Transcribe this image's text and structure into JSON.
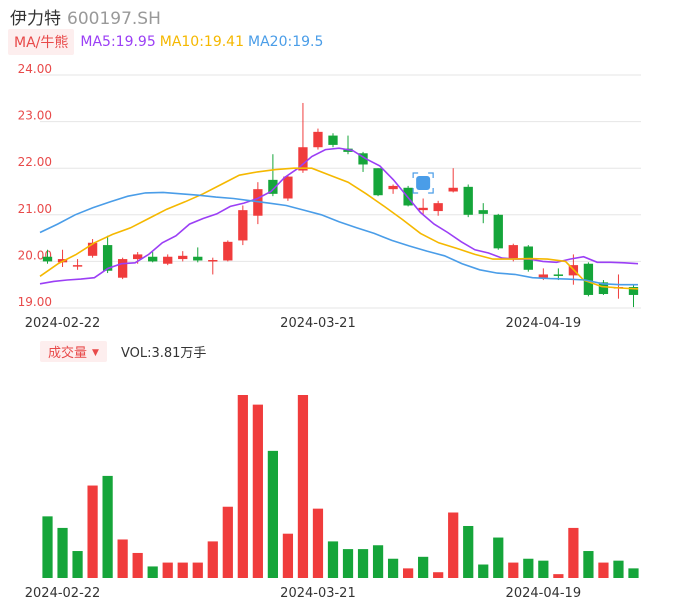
{
  "header": {
    "name": "伊力特",
    "code": "600197.SH"
  },
  "ma_legend": {
    "button": "MA/牛熊",
    "items": [
      {
        "label": "MA5:19.95",
        "color": "#9b3ff5"
      },
      {
        "label": "MA10:19.41",
        "color": "#f5b800"
      },
      {
        "label": "MA20:19.5",
        "color": "#4a9de8"
      }
    ]
  },
  "vol_legend": {
    "button": "成交量",
    "text": "VOL:3.81万手"
  },
  "colors": {
    "up": "#f03c3c",
    "down": "#15a53a",
    "grid": "#e6e6e6",
    "axis_text": "#e84a4a",
    "date_text": "#333333"
  },
  "chart_data": [
    {
      "type": "candlestick",
      "y_ticks": [
        "24.00",
        "23.00",
        "22.00",
        "21.00",
        "20.00",
        "19.00"
      ],
      "ylim": [
        19.0,
        24.0
      ],
      "x_labels": [
        {
          "index": 1,
          "label": "2024-02-22"
        },
        {
          "index": 18,
          "label": "2024-03-21"
        },
        {
          "index": 33,
          "label": "2024-04-19"
        }
      ],
      "candles": [
        {
          "o": 20.1,
          "c": 20.0,
          "h": 20.25,
          "l": 19.95
        },
        {
          "o": 19.98,
          "c": 20.05,
          "h": 20.25,
          "l": 19.88
        },
        {
          "o": 19.92,
          "c": 19.92,
          "h": 20.05,
          "l": 19.82
        },
        {
          "o": 20.12,
          "c": 20.4,
          "h": 20.48,
          "l": 20.08
        },
        {
          "o": 20.35,
          "c": 19.8,
          "h": 20.55,
          "l": 19.75
        },
        {
          "o": 19.65,
          "c": 20.05,
          "h": 20.08,
          "l": 19.62
        },
        {
          "o": 20.05,
          "c": 20.15,
          "h": 20.2,
          "l": 19.95
        },
        {
          "o": 20.1,
          "c": 20.0,
          "h": 20.2,
          "l": 19.98
        },
        {
          "o": 19.95,
          "c": 20.1,
          "h": 20.15,
          "l": 19.92
        },
        {
          "o": 20.05,
          "c": 20.12,
          "h": 20.22,
          "l": 20.0
        },
        {
          "o": 20.1,
          "c": 20.02,
          "h": 20.3,
          "l": 19.98
        },
        {
          "o": 20.0,
          "c": 20.03,
          "h": 20.08,
          "l": 19.72
        },
        {
          "o": 20.02,
          "c": 20.42,
          "h": 20.45,
          "l": 20.0
        },
        {
          "o": 20.45,
          "c": 21.1,
          "h": 21.2,
          "l": 20.35
        },
        {
          "o": 20.98,
          "c": 21.55,
          "h": 21.7,
          "l": 20.8
        },
        {
          "o": 21.75,
          "c": 21.45,
          "h": 22.3,
          "l": 21.4
        },
        {
          "o": 21.35,
          "c": 21.82,
          "h": 21.85,
          "l": 21.3
        },
        {
          "o": 21.95,
          "c": 22.45,
          "h": 23.4,
          "l": 21.9
        },
        {
          "o": 22.45,
          "c": 22.78,
          "h": 22.85,
          "l": 22.4
        },
        {
          "o": 22.7,
          "c": 22.5,
          "h": 22.75,
          "l": 22.45
        },
        {
          "o": 22.42,
          "c": 22.35,
          "h": 22.7,
          "l": 22.3
        },
        {
          "o": 22.32,
          "c": 22.08,
          "h": 22.35,
          "l": 21.92
        },
        {
          "o": 22.0,
          "c": 21.42,
          "h": 22.0,
          "l": 21.4
        },
        {
          "o": 21.55,
          "c": 21.62,
          "h": 21.65,
          "l": 21.45
        },
        {
          "o": 21.58,
          "c": 21.2,
          "h": 21.62,
          "l": 21.18
        },
        {
          "o": 21.1,
          "c": 21.15,
          "h": 21.35,
          "l": 21.0
        },
        {
          "o": 21.08,
          "c": 21.25,
          "h": 21.3,
          "l": 20.98
        },
        {
          "o": 21.5,
          "c": 21.58,
          "h": 22.0,
          "l": 21.48
        },
        {
          "o": 21.6,
          "c": 21.0,
          "h": 21.65,
          "l": 20.95
        },
        {
          "o": 21.1,
          "c": 21.02,
          "h": 21.25,
          "l": 20.82
        },
        {
          "o": 21.0,
          "c": 20.28,
          "h": 21.02,
          "l": 20.25
        },
        {
          "o": 20.05,
          "c": 20.35,
          "h": 20.38,
          "l": 20.0
        },
        {
          "o": 20.32,
          "c": 19.82,
          "h": 20.35,
          "l": 19.78
        },
        {
          "o": 19.65,
          "c": 19.72,
          "h": 19.85,
          "l": 19.6
        },
        {
          "o": 19.72,
          "c": 19.7,
          "h": 19.85,
          "l": 19.6
        },
        {
          "o": 19.7,
          "c": 19.92,
          "h": 20.15,
          "l": 19.5
        },
        {
          "o": 19.95,
          "c": 19.28,
          "h": 19.98,
          "l": 19.25
        },
        {
          "o": 19.55,
          "c": 19.3,
          "h": 19.6,
          "l": 19.28
        },
        {
          "o": 19.45,
          "c": 19.45,
          "h": 19.72,
          "l": 19.2
        },
        {
          "o": 19.45,
          "c": 19.28,
          "h": 19.5,
          "l": 19.02
        }
      ],
      "series": [
        {
          "name": "MA5",
          "color": "#9b3ff5",
          "values": [
            19.52,
            19.57,
            19.6,
            19.62,
            19.65,
            19.85,
            19.95,
            19.97,
            20.15,
            20.4,
            20.55,
            20.8,
            20.92,
            21.02,
            21.18,
            21.25,
            21.35,
            21.5,
            21.8,
            22.0,
            22.25,
            22.4,
            22.43,
            22.38,
            22.2,
            22.05,
            21.75,
            21.4,
            21.05,
            20.8,
            20.62,
            20.42,
            20.25,
            20.18,
            20.07,
            20.05,
            20.05,
            20.0,
            19.98,
            20.05,
            20.1,
            19.98,
            19.98,
            19.97,
            19.95
          ]
        },
        {
          "name": "MA10",
          "color": "#f5b800",
          "values": [
            19.68,
            19.95,
            20.15,
            20.4,
            20.58,
            20.72,
            20.92,
            21.12,
            21.28,
            21.45,
            21.65,
            21.85,
            21.92,
            21.97,
            22.0,
            22.0,
            21.85,
            21.7,
            21.45,
            21.18,
            20.9,
            20.6,
            20.4,
            20.28,
            20.15,
            20.05,
            20.05,
            20.06,
            20.05,
            20.0,
            19.6,
            19.46,
            19.43,
            19.41
          ]
        },
        {
          "name": "MA20",
          "color": "#4a9de8",
          "values": [
            20.62,
            20.8,
            21.0,
            21.15,
            21.28,
            21.4,
            21.47,
            21.48,
            21.45,
            21.42,
            21.38,
            21.35,
            21.3,
            21.25,
            21.2,
            21.1,
            21.0,
            20.85,
            20.72,
            20.6,
            20.45,
            20.33,
            20.22,
            20.12,
            19.95,
            19.82,
            19.75,
            19.72,
            19.65,
            19.63,
            19.62,
            19.6,
            19.52,
            19.5,
            19.5
          ]
        }
      ]
    },
    {
      "type": "bar",
      "title": "成交量",
      "x_labels": [
        {
          "index": 1,
          "label": "2024-02-22"
        },
        {
          "index": 18,
          "label": "2024-03-21"
        },
        {
          "index": 33,
          "label": "2024-04-19"
        }
      ],
      "values": [
        3.2,
        2.6,
        1.4,
        4.8,
        5.3,
        2.0,
        1.3,
        0.6,
        0.8,
        0.8,
        0.8,
        1.9,
        3.7,
        9.5,
        9.0,
        6.6,
        2.3,
        9.5,
        3.6,
        1.9,
        1.5,
        1.5,
        1.7,
        1.0,
        0.5,
        1.1,
        0.3,
        3.4,
        2.7,
        0.7,
        2.1,
        0.8,
        1.0,
        0.9,
        0.2,
        2.6,
        1.4,
        0.8,
        0.9,
        0.5
      ],
      "directions": [
        "down",
        "down",
        "down",
        "up",
        "down",
        "up",
        "up",
        "down",
        "up",
        "up",
        "up",
        "up",
        "up",
        "up",
        "up",
        "down",
        "up",
        "up",
        "up",
        "down",
        "down",
        "down",
        "down",
        "down",
        "red",
        "down",
        "up",
        "up",
        "down",
        "down",
        "down",
        "up",
        "down",
        "down",
        "up",
        "up",
        "down",
        "up",
        "down",
        "down"
      ]
    }
  ]
}
